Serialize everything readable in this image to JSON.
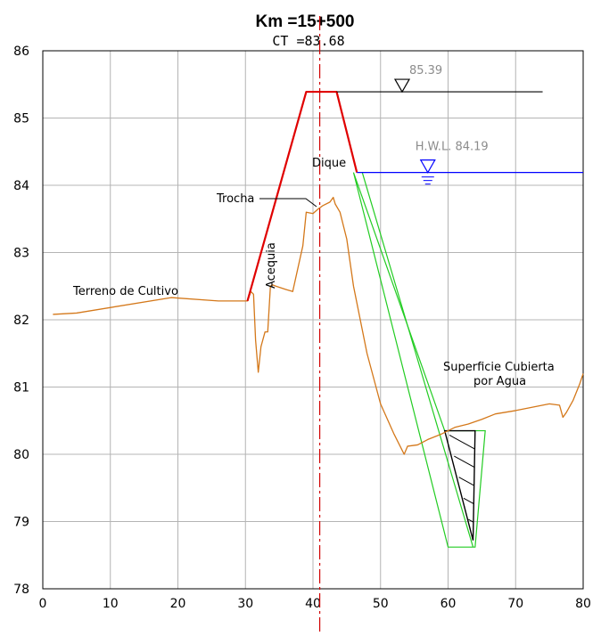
{
  "title": "Km =15+500",
  "subtitle": "CT =83.68",
  "colors": {
    "grid": "#b4b4b4",
    "terrain": "#d4781a",
    "levee": "#e00000",
    "water": "#0000ff",
    "seepage": "#22cc22",
    "centerline": "#d00000",
    "annotation_gray": "#8c8c8c"
  },
  "chart_data": {
    "type": "line",
    "xlim": [
      0,
      80
    ],
    "ylim": [
      78,
      86
    ],
    "x_ticks": [
      "0",
      "10",
      "20",
      "30",
      "40",
      "50",
      "60",
      "70",
      "80"
    ],
    "y_ticks": [
      "78",
      "79",
      "80",
      "81",
      "82",
      "83",
      "84",
      "85",
      "86"
    ],
    "grid": true,
    "centerline_x": 41,
    "series": [
      {
        "key": "terrain",
        "x": [
          1.5,
          5,
          19,
          26,
          30.3,
          30.8,
          31.2,
          31.5,
          31.9,
          32.3,
          32.9,
          33.3,
          33.7,
          34,
          34.5,
          36,
          37,
          38.5,
          39,
          40,
          40.8,
          41.5,
          42.5,
          43,
          43.3,
          44,
          45,
          46,
          48,
          50,
          52,
          53.5,
          54,
          55.5,
          57,
          59,
          61,
          63,
          65,
          67,
          70,
          75,
          76.5,
          77,
          77.5,
          78.5,
          79.5,
          80
        ],
        "y": [
          82.08,
          82.1,
          82.33,
          82.28,
          82.28,
          82.42,
          82.38,
          81.7,
          81.22,
          81.6,
          81.82,
          81.82,
          82.5,
          82.52,
          82.5,
          82.45,
          82.42,
          83.1,
          83.6,
          83.58,
          83.65,
          83.7,
          83.75,
          83.82,
          83.72,
          83.6,
          83.2,
          82.5,
          81.5,
          80.75,
          80.3,
          80.0,
          80.12,
          80.14,
          80.22,
          80.3,
          80.4,
          80.45,
          80.52,
          80.6,
          80.65,
          80.75,
          80.73,
          80.55,
          80.62,
          80.8,
          81.05,
          81.2
        ]
      },
      {
        "key": "levee",
        "x": [
          30.3,
          39,
          43.5,
          46.5
        ],
        "y": [
          82.28,
          85.39,
          85.39,
          84.19
        ]
      }
    ],
    "water_levels": [
      {
        "label": "85.39",
        "value": 85.39,
        "x_from": 43.5,
        "x_to": 74,
        "marker_x": 53.2
      },
      {
        "label": "H.W.L.  84.19",
        "value": 84.19,
        "x_from": 46.5,
        "x_to": 80,
        "marker_x": 57
      }
    ],
    "seepage_zone": {
      "outer": [
        [
          46,
          84.19
        ],
        [
          60,
          78.62
        ],
        [
          64,
          78.62
        ],
        [
          65.5,
          80.35
        ],
        [
          59.5,
          80.35
        ]
      ],
      "inner_line": [
        [
          47.3,
          84.19
        ],
        [
          63.7,
          78.62
        ]
      ],
      "hatched_triangle": [
        [
          59.5,
          80.35
        ],
        [
          64,
          80.35
        ],
        [
          63.7,
          78.72
        ]
      ]
    },
    "annotations": [
      {
        "key": "dique",
        "text": "Dique"
      },
      {
        "key": "trocha",
        "text": "Trocha"
      },
      {
        "key": "acequia",
        "text": "Acequia"
      },
      {
        "key": "terreno",
        "text": "Terreno de Cultivo"
      },
      {
        "key": "superficie1",
        "text": "Superficie Cubierta"
      },
      {
        "key": "superficie2",
        "text": "por Agua"
      }
    ]
  }
}
